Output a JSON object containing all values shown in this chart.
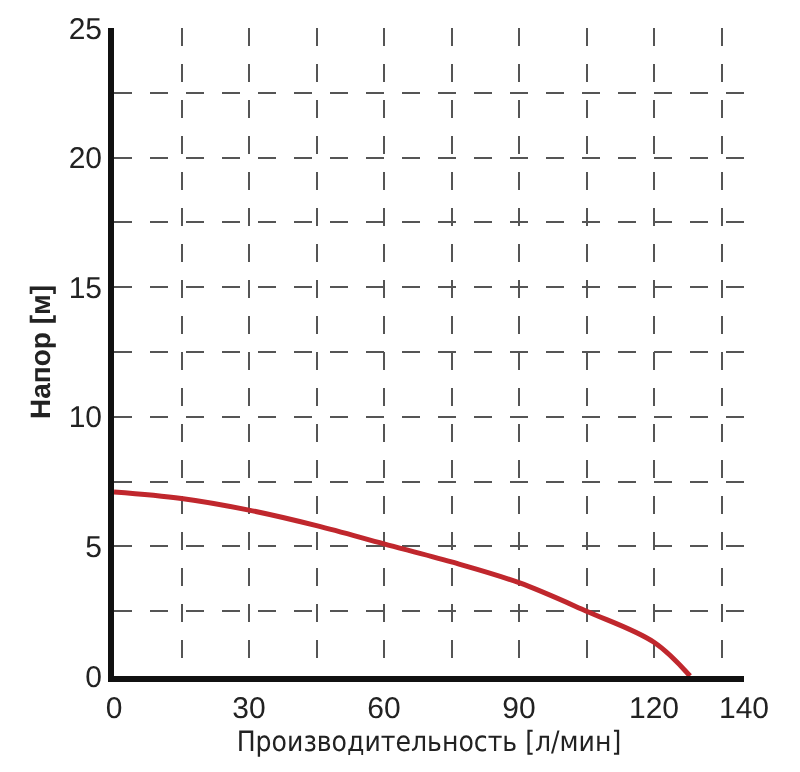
{
  "chart_data": {
    "type": "line",
    "xlabel": "Производительность [л/мин]",
    "ylabel": "Напор [м]",
    "x": [
      0,
      15,
      30,
      45,
      60,
      75,
      90,
      105,
      120,
      128
    ],
    "series": [
      {
        "color": "#c0272d",
        "values": [
          7.1,
          6.85,
          6.4,
          5.8,
          5.1,
          4.4,
          3.6,
          2.5,
          1.3,
          0
        ]
      }
    ],
    "xlim": [
      0,
      140
    ],
    "ylim": [
      0,
      25
    ],
    "xticks": [
      0,
      {
        "value": 15,
        "label": null
      },
      30,
      {
        "value": 45,
        "label": null
      },
      60,
      {
        "value": 75,
        "label": null
      },
      90,
      {
        "value": 105,
        "label": null
      },
      120,
      {
        "value": 135,
        "label": null
      },
      140
    ],
    "yticks": [
      0,
      {
        "value": 2.5,
        "label": null
      },
      5,
      {
        "value": 7.5,
        "label": null
      },
      10,
      {
        "value": 12.5,
        "label": null
      },
      15,
      {
        "value": 17.5,
        "label": null
      },
      20,
      {
        "value": 22.5,
        "label": null
      },
      25
    ],
    "grid": true,
    "marker": "none",
    "line_style": "solid"
  }
}
